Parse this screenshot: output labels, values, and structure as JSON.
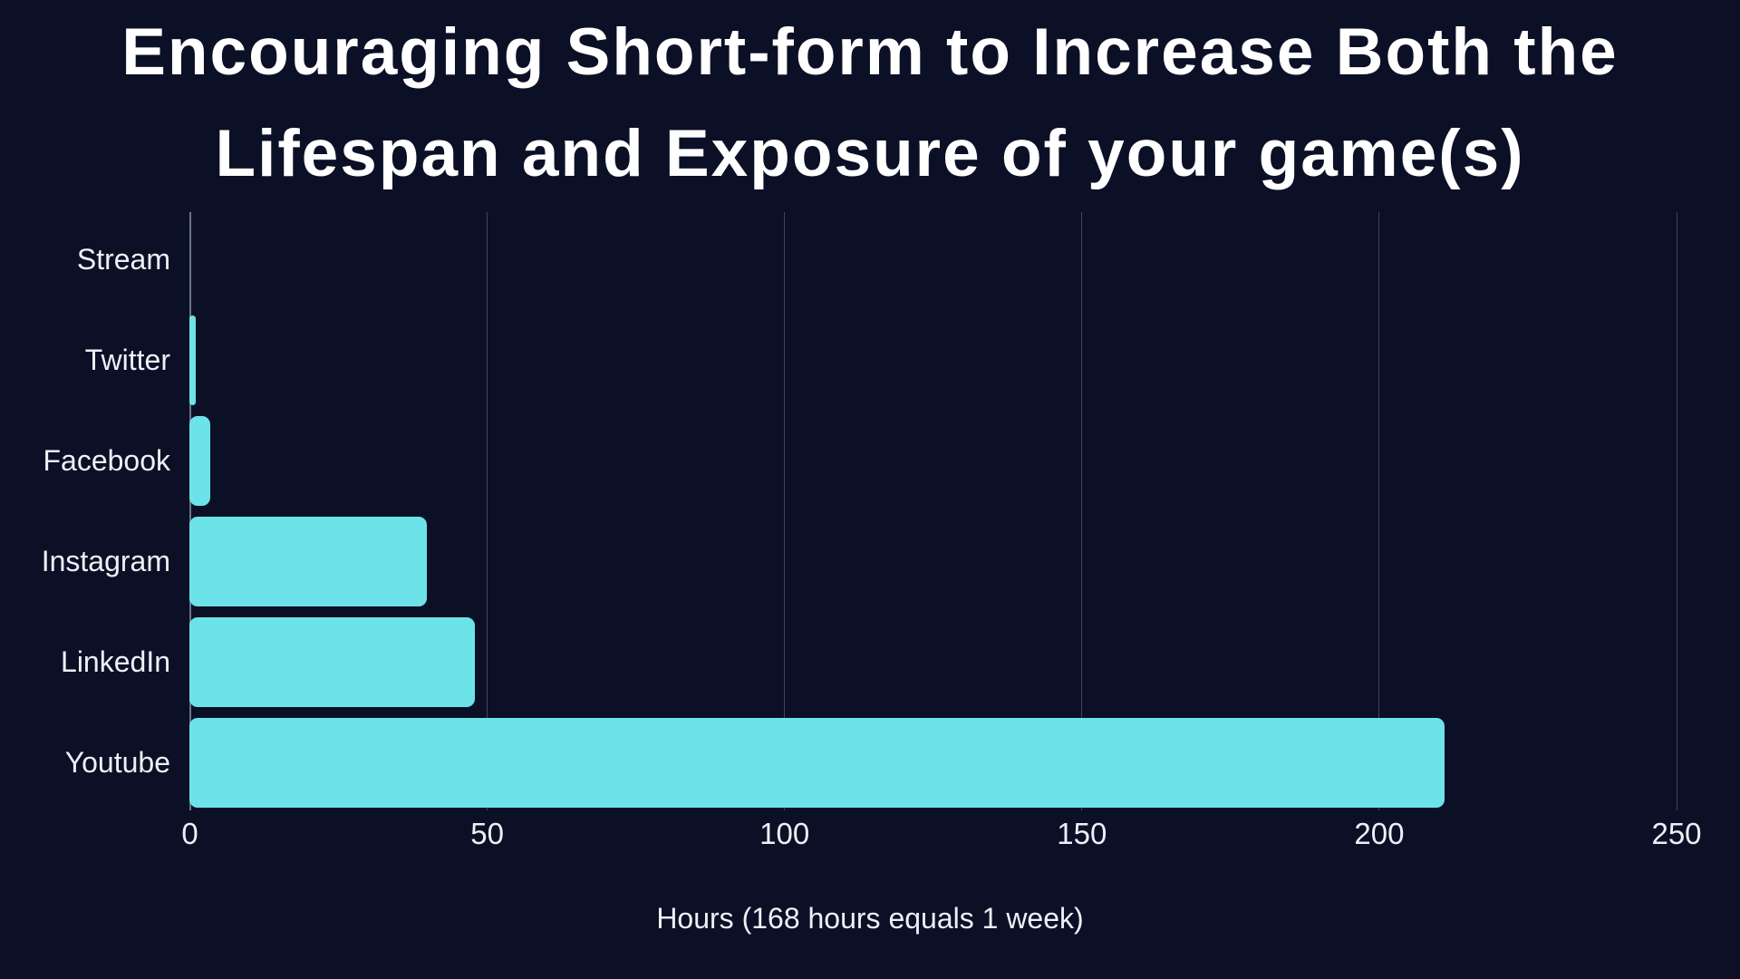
{
  "title": {
    "lines": [
      "Encouraging Short-form to Increase Both the",
      "Lifespan and Exposure of your game(s)"
    ]
  },
  "colors": {
    "background": "#0B1026",
    "bar": "#6CE3E9",
    "title_text": "#FFFFFF",
    "label_text": "#EDF0F5"
  },
  "chart_data": {
    "type": "bar",
    "orientation": "horizontal",
    "title": "Encouraging Short-form to Increase Both the Lifespan and Exposure of your game(s)",
    "categories": [
      "Stream",
      "Twitter",
      "Facebook",
      "Instagram",
      "LinkedIn",
      "Youtube"
    ],
    "values": [
      0,
      1,
      3.5,
      40,
      48,
      211
    ],
    "xlabel": "Hours (168 hours equals 1 week)",
    "xticks": [
      0,
      50,
      100,
      150,
      200,
      250
    ],
    "xlim": [
      0,
      250
    ],
    "grid": "vertical",
    "legend": "none",
    "bar_color": "#6CE3E9",
    "background_color": "#0B1026"
  }
}
